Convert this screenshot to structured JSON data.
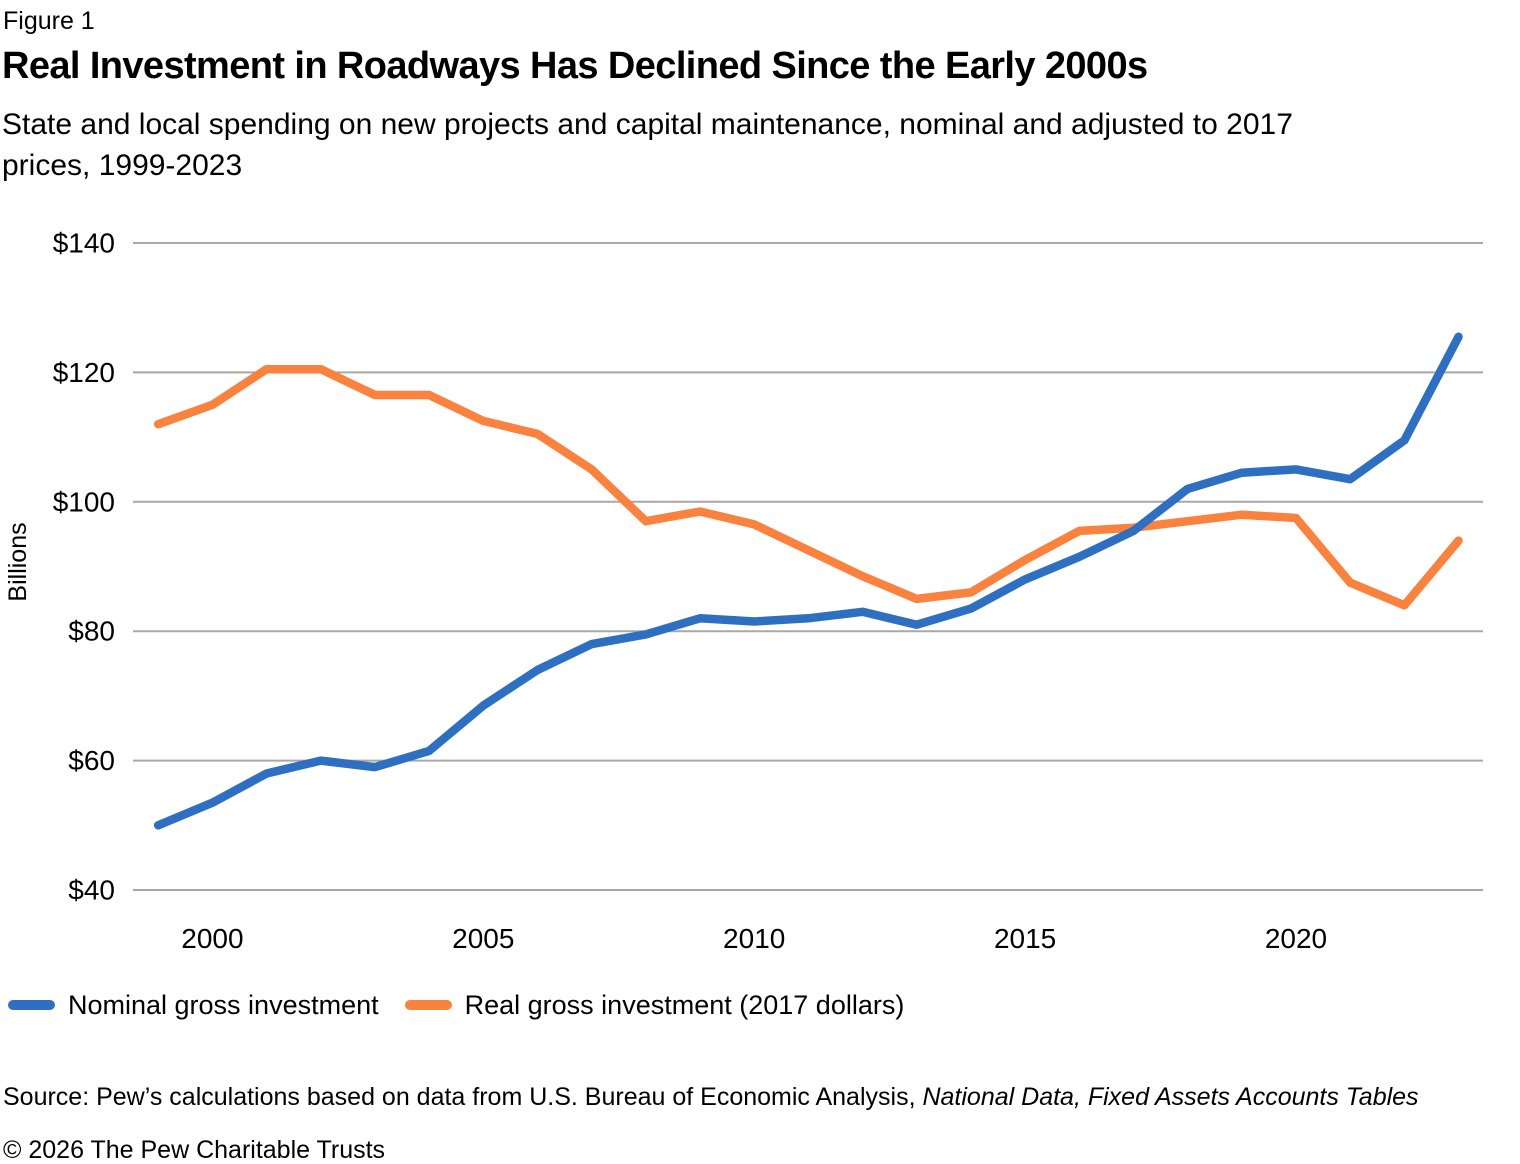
{
  "figure_label": "Figure 1",
  "title": "Real Investment in Roadways Has Declined Since the Early 2000s",
  "subtitle_lines": [
    "State and local spending on new projects and capital maintenance, nominal and adjusted to 2017",
    "prices, 1999-2023"
  ],
  "y_axis_label": "Billions",
  "legend": [
    {
      "label": "Nominal gross investment",
      "color": "#2E6FC2"
    },
    {
      "label": "Real gross investment (2017 dollars)",
      "color": "#F8823E"
    }
  ],
  "source": {
    "prefix": "Source: Pew’s calculations based on data from U.S. Bureau of Economic Analysis, ",
    "italic": "National Data, Fixed Assets Accounts Tables"
  },
  "copyright": "© 2026 The Pew Charitable Trusts",
  "chart_data": {
    "type": "line",
    "title": "Real Investment in Roadways Has Declined Since the Early 2000s",
    "xlabel": "",
    "ylabel": "Billions",
    "unit": "USD billions",
    "x": [
      1999,
      2000,
      2001,
      2002,
      2003,
      2004,
      2005,
      2006,
      2007,
      2008,
      2009,
      2010,
      2011,
      2012,
      2013,
      2014,
      2015,
      2016,
      2017,
      2018,
      2019,
      2020,
      2021,
      2022,
      2023
    ],
    "series": [
      {
        "name": "Nominal gross investment",
        "color": "#2E6FC2",
        "values": [
          50,
          53.5,
          58,
          60,
          59,
          61.5,
          68.5,
          74,
          78,
          79.5,
          82,
          81.5,
          82,
          83,
          81,
          83.5,
          88,
          91.5,
          95.5,
          102,
          104.5,
          105,
          103.5,
          109.5,
          125.5
        ]
      },
      {
        "name": "Real gross investment (2017 dollars)",
        "color": "#F8823E",
        "values": [
          112,
          115,
          120.5,
          120.5,
          116.5,
          116.5,
          112.5,
          110.5,
          105,
          97,
          98.5,
          96.5,
          92.5,
          88.5,
          85,
          86,
          91,
          95.5,
          96,
          97,
          98,
          97.5,
          87.5,
          84,
          94
        ]
      }
    ],
    "ylim": [
      40,
      140
    ],
    "y_ticks": [
      140,
      120,
      100,
      80,
      60,
      40
    ],
    "y_tick_labels": [
      "$140",
      "$120",
      "$100",
      "$80",
      "$60",
      "$40"
    ],
    "x_ticks": [
      2000,
      2005,
      2010,
      2015,
      2020
    ],
    "grid": "horizontal",
    "gridline_color": "#A8A8A8",
    "legend_position": "bottom-left"
  }
}
